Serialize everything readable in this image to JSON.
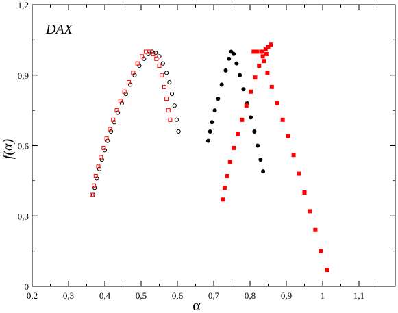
{
  "chart_data": {
    "type": "scatter",
    "title": "",
    "annotation": "DAX",
    "xlabel": "α",
    "ylabel": "f(α)",
    "xlim": [
      0.2,
      1.2
    ],
    "ylim": [
      0,
      1.2
    ],
    "x_ticks": [
      0.2,
      0.3,
      0.4,
      0.5,
      0.6,
      0.7,
      0.8,
      0.9,
      1.0,
      1.1
    ],
    "x_tick_labels": [
      "0,2",
      "0,3",
      "0,4",
      "0,5",
      "0,6",
      "0,7",
      "0,8",
      "0,9",
      "1",
      "1,1"
    ],
    "y_ticks": [
      0,
      0.3,
      0.6,
      0.9,
      1.2
    ],
    "y_tick_labels": [
      "0",
      "0,3",
      "0,6",
      "0,9",
      "1,2"
    ],
    "grid": false,
    "series": [
      {
        "marker": "open-circle",
        "color": "#000000",
        "points": [
          [
            0.368,
            0.39
          ],
          [
            0.372,
            0.42
          ],
          [
            0.378,
            0.46
          ],
          [
            0.385,
            0.5
          ],
          [
            0.392,
            0.54
          ],
          [
            0.4,
            0.58
          ],
          [
            0.408,
            0.62
          ],
          [
            0.417,
            0.66
          ],
          [
            0.426,
            0.7
          ],
          [
            0.436,
            0.74
          ],
          [
            0.447,
            0.78
          ],
          [
            0.458,
            0.82
          ],
          [
            0.47,
            0.86
          ],
          [
            0.482,
            0.9
          ],
          [
            0.495,
            0.94
          ],
          [
            0.508,
            0.97
          ],
          [
            0.52,
            0.99
          ],
          [
            0.53,
            1.0
          ],
          [
            0.54,
            0.995
          ],
          [
            0.55,
            0.98
          ],
          [
            0.56,
            0.95
          ],
          [
            0.57,
            0.91
          ],
          [
            0.578,
            0.87
          ],
          [
            0.585,
            0.82
          ],
          [
            0.592,
            0.77
          ],
          [
            0.598,
            0.71
          ],
          [
            0.603,
            0.66
          ]
        ]
      },
      {
        "marker": "open-square",
        "color": "#ff0000",
        "points": [
          [
            0.365,
            0.39
          ],
          [
            0.37,
            0.43
          ],
          [
            0.375,
            0.47
          ],
          [
            0.382,
            0.51
          ],
          [
            0.389,
            0.55
          ],
          [
            0.397,
            0.59
          ],
          [
            0.405,
            0.63
          ],
          [
            0.414,
            0.67
          ],
          [
            0.423,
            0.71
          ],
          [
            0.433,
            0.75
          ],
          [
            0.443,
            0.79
          ],
          [
            0.454,
            0.83
          ],
          [
            0.466,
            0.87
          ],
          [
            0.478,
            0.91
          ],
          [
            0.49,
            0.95
          ],
          [
            0.502,
            0.98
          ],
          [
            0.513,
            1.0
          ],
          [
            0.523,
            1.0
          ],
          [
            0.533,
            0.99
          ],
          [
            0.542,
            0.97
          ],
          [
            0.55,
            0.94
          ],
          [
            0.557,
            0.9
          ],
          [
            0.564,
            0.85
          ],
          [
            0.57,
            0.8
          ],
          [
            0.575,
            0.75
          ],
          [
            0.58,
            0.71
          ]
        ]
      },
      {
        "marker": "filled-circle",
        "color": "#000000",
        "points": [
          [
            0.685,
            0.62
          ],
          [
            0.69,
            0.66
          ],
          [
            0.695,
            0.7
          ],
          [
            0.703,
            0.75
          ],
          [
            0.712,
            0.8
          ],
          [
            0.722,
            0.86
          ],
          [
            0.733,
            0.92
          ],
          [
            0.742,
            0.97
          ],
          [
            0.748,
            1.0
          ],
          [
            0.755,
            0.99
          ],
          [
            0.763,
            0.95
          ],
          [
            0.772,
            0.9
          ],
          [
            0.782,
            0.84
          ],
          [
            0.792,
            0.78
          ],
          [
            0.802,
            0.72
          ],
          [
            0.812,
            0.66
          ],
          [
            0.821,
            0.6
          ],
          [
            0.829,
            0.54
          ],
          [
            0.836,
            0.49
          ]
        ]
      },
      {
        "marker": "filled-square",
        "color": "#ff0000",
        "points": [
          [
            0.725,
            0.37
          ],
          [
            0.73,
            0.42
          ],
          [
            0.737,
            0.47
          ],
          [
            0.745,
            0.53
          ],
          [
            0.755,
            0.59
          ],
          [
            0.766,
            0.65
          ],
          [
            0.778,
            0.71
          ],
          [
            0.79,
            0.77
          ],
          [
            0.802,
            0.83
          ],
          [
            0.814,
            0.89
          ],
          [
            0.825,
            0.94
          ],
          [
            0.835,
            0.98
          ],
          [
            0.843,
            1.01
          ],
          [
            0.85,
            1.02
          ],
          [
            0.857,
            1.03
          ],
          [
            0.845,
            0.99
          ],
          [
            0.832,
            1.0
          ],
          [
            0.82,
            1.0
          ],
          [
            0.81,
            1.0
          ],
          [
            0.838,
            0.96
          ],
          [
            0.848,
            0.91
          ],
          [
            0.86,
            0.85
          ],
          [
            0.875,
            0.78
          ],
          [
            0.89,
            0.71
          ],
          [
            0.905,
            0.64
          ],
          [
            0.92,
            0.56
          ],
          [
            0.935,
            0.48
          ],
          [
            0.95,
            0.4
          ],
          [
            0.965,
            0.32
          ],
          [
            0.98,
            0.24
          ],
          [
            0.995,
            0.15
          ],
          [
            1.012,
            0.07
          ]
        ]
      }
    ]
  }
}
